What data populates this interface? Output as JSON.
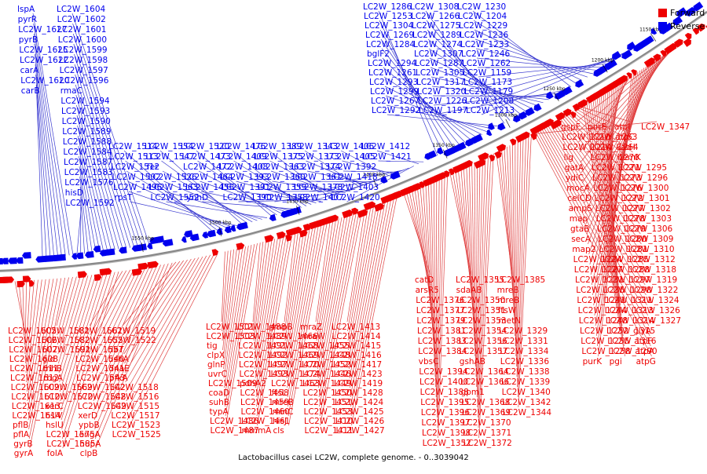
{
  "colors": {
    "forward": "#ee0000",
    "reverse": "#0000ee",
    "backbone": "#888888",
    "leader_forward": "#e04040",
    "leader_reverse": "#3a3ad0"
  },
  "legend": {
    "forward": "Forward",
    "reverse": "Reverse"
  },
  "caption": "Lactobacillus casei LC2W, complete genome. - 0..3039042",
  "ticks": [
    "1150 kbp",
    "1200 kbp",
    "1250 kbp",
    "1300 kbp",
    "1350 kbp",
    "1400 kbp",
    "1450 kbp",
    "1500 kbp",
    "1550 kbp"
  ],
  "labels_top_left": [
    "LC2W_1604",
    "LC2W_1602",
    "LC2W_1601",
    "LC2W_1600",
    "LC2W_1599",
    "LC2W_1598",
    "LC2W_1597",
    "LC2W_1596",
    "rmaC",
    "LC2W_1594",
    "LC2W_1593",
    "LC2W_1590",
    "LC2W_1589",
    "LC2W_1588",
    "LC2W_1584",
    "LC2W_1587",
    "LC2W_1583",
    "LC2W_1576",
    "hisD",
    "LC2W_1592",
    "lspA",
    "pyrR",
    "LC2W_1627",
    "pyrB",
    "LC2W_1625",
    "LC2W_1622",
    "carA",
    "LC2W_1620",
    "carB"
  ],
  "labels_top_mid": [
    "LC2W_1514",
    "LC2W_1513",
    "LC2W_1512",
    "LC2W_1502",
    "LC2W_1496",
    "rpsT",
    "LC2W_1554",
    "LC2W_1547",
    "fer",
    "LC2W_1526",
    "LC2W_1563",
    "LC2W_1552",
    "LC2W_1520",
    "LC2W_1473",
    "LC2W_1472",
    "LC2W_1464",
    "LC2W_1456",
    "ynhD",
    "LC2W_1476",
    "LC2W_1409",
    "LC2W_1408",
    "LC2W_1393",
    "LC2W_1391",
    "LC2W_1390",
    "LC2W_1389",
    "LC2W_1375",
    "LC2W_1363",
    "LC2W_1360",
    "LC2W_1359",
    "LC2W_1358",
    "LC2W_1343",
    "LC2W_1373",
    "LC2W_1374",
    "LC2W_1361",
    "LC2W_1378",
    "LC2W_1407",
    "LC2W_1406",
    "LC2W_1405",
    "LC2W_1392",
    "LC2W_1418",
    "LC2W_1403",
    "LC2W_1420",
    "LC2W_1412",
    "LC2W_1421"
  ],
  "labels_top_right": [
    "LC2W_1286",
    "LC2W_1253",
    "LC2W_1304",
    "LC2W_1269",
    "LC2W_1284",
    "bglF2",
    "LC2W_1294",
    "LC2W_1261",
    "LC2W_1293",
    "LC2W_1299",
    "LC2W_1267",
    "LC2W_1292",
    "LC2W_1308",
    "LC2W_1266",
    "LC2W_1275",
    "LC2W_1289",
    "LC2W_1274",
    "LC2W_1307",
    "LC2W_1287",
    "LC2W_1305",
    "LC2W_1317",
    "LC2W_1320",
    "LC2W_1226",
    "LC2W_1197",
    "LC2W_1230",
    "LC2W_1204",
    "LC2W_1229",
    "LC2W_1236",
    "LC2W_1233",
    "LC2W_1246",
    "LC2W_1262",
    "LC2W_1159",
    "LC2W_1173",
    "LC2W_1179",
    "LC2W_1208",
    "LC2W_1213"
  ],
  "labels_right": [
    "gspF",
    "LC2W_1210",
    "LC2W_1214",
    "lig",
    "gatA",
    "ydiC",
    "mocA",
    "celCD",
    "ampS",
    "map",
    "gtaB",
    "secA",
    "map2",
    "LC2W_1224",
    "LC2W_1227",
    "LC2W_1231",
    "LC2W_1235",
    "LC2W_1241",
    "LC2W_1244",
    "LC2W_1248",
    "LC2W_1252",
    "LC2W_1255",
    "LC2W_1258",
    "purK",
    "purB",
    "LC2W_1263",
    "LC2W_1264",
    "LC2W_1270",
    "LC2W_1271",
    "LC2W_1273",
    "LC2W_1276",
    "LC2W_1272",
    "LC2W_1277",
    "LC2W_1278",
    "LC2W_1279",
    "LC2W_1280",
    "LC2W_1281",
    "LC2W_1285",
    "LC2W_1288",
    "LC2W_1297",
    "LC2W_1298",
    "LC2W_1311",
    "LC2W_1313",
    "LC2W_1314",
    "LC2W_1315",
    "LC2W_1316",
    "LC2W_1290",
    "pgi",
    "atpI",
    "atpC",
    "katH",
    "hemK",
    "LC2W_1295",
    "LC2W_1296",
    "LC2W_1300",
    "LC2W_1301",
    "LC2W_1302",
    "LC2W_1303",
    "LC2W_1306",
    "LC2W_1309",
    "LC2W_1310",
    "LC2W_1312",
    "LC2W_1318",
    "LC2W_1319",
    "LC2W_1322",
    "LC2W_1324",
    "LC2W_1326",
    "LC2W_1327",
    "glyA",
    "atpF",
    "atpA",
    "atpG",
    "LC2W_1347"
  ],
  "labels_bottom_left": [
    "LC2W_1605",
    "LC2W_1606",
    "LC2W_1607",
    "LC2W_1608",
    "LC2W_1611",
    "LC2W_1612",
    "LC2W_1609",
    "LC2W_1610",
    "LC2W_1613",
    "LC2W_1614",
    "pflB",
    "pflA",
    "gyrB",
    "gyrA",
    "LC2W_1581",
    "LC2W_1582",
    "LC2W_1591",
    "gid",
    "rnhB",
    "rbgA",
    "LC2W_1569",
    "LC2W_1570",
    "xerC",
    "hslV",
    "hslU",
    "LC2W_1575",
    "LC2W_1585",
    "folA",
    "LC2W_1561",
    "LC2W_1555",
    "LC2W_1557",
    "LC2W_1540",
    "LC2W_1541",
    "LC2W_1543",
    "LC2W_1542",
    "LC2W_1548",
    "LC2W_1549",
    "xerD",
    "ypbB",
    "engA",
    "hupA",
    "clpB",
    "LC2W_1519",
    "LC2W_1522",
    "ribT",
    "ushA",
    "dnaE",
    "pfkA",
    "LC2W_1518",
    "LC2W_1516",
    "LC2W_1515",
    "LC2W_1517",
    "LC2W_1523",
    "LC2W_1525"
  ],
  "labels_bottom_mid": [
    "LC2W_1501",
    "LC2W_1503",
    "tig",
    "clpX",
    "glnP",
    "uvrC",
    "LC2W_1509",
    "coaD",
    "suhB",
    "typA",
    "LC2W_1486",
    "LC2W_1487",
    "LC2W_1488",
    "LC2W_1489",
    "LC2W_1491",
    "LC2W_1492",
    "LC2W_1497",
    "LC2W_1493",
    "pdhA2",
    "LC2W_1458",
    "LC2W_1459",
    "LC2W_1460",
    "LC2W_1461",
    "mmmA",
    "gmpB",
    "LC2W_1466",
    "LC2W_1468",
    "LC2W_1469",
    "LC2W_1470",
    "LC2W_1474",
    "LC2W_1463",
    "ftsL",
    "mreB",
    "minC",
    "hisJ",
    "cls",
    "mraZ",
    "mraW",
    "LC2W_1455",
    "LC2W_1448",
    "LC2W_1452",
    "LC2W_1446",
    "LC2W_1449",
    "LC2W_1450",
    "LC2W_1451",
    "LC2W_1453",
    "LC2W_1410",
    "LC2W_1411",
    "LC2W_1413",
    "LC2W_1414",
    "LC2W_1415",
    "LC2W_1416",
    "LC2W_1417",
    "LC2W_1423",
    "LC2W_1419",
    "LC2W_1428",
    "LC2W_1424",
    "LC2W_1425",
    "LC2W_1426",
    "LC2W_1427"
  ],
  "labels_bottom_right": [
    "catD",
    "arsR5",
    "LC2W_1376",
    "LC2W_1377",
    "LC2W_1379",
    "LC2W_1381",
    "LC2W_1383",
    "LC2W_1384",
    "vbsC",
    "LC2W_1394",
    "LC2W_1400",
    "LC2W_1388",
    "LC2W_1395",
    "LC2W_1396",
    "LC2W_1397",
    "LC2W_1398",
    "LC2W_1352",
    "LC2W_1355",
    "sdaAB",
    "LC2W_1350",
    "LC2W_1351",
    "LC2W_1353",
    "LC2W_1354",
    "LC2W_1356",
    "LC2W_1357",
    "gshAB",
    "LC2W_1364",
    "LC2W_1366",
    "gpm1",
    "LC2W_1368",
    "LC2W_1369",
    "LC2W_1370",
    "LC2W_1371",
    "LC2W_1372",
    "LC2W_1385",
    "mreB",
    "mreB",
    "ftsW",
    "metN",
    "LC2W_1329",
    "LC2W_1331",
    "LC2W_1334",
    "LC2W_1336",
    "LC2W_1338",
    "LC2W_1339",
    "LC2W_1340",
    "LC2W_1342",
    "LC2W_1344"
  ]
}
